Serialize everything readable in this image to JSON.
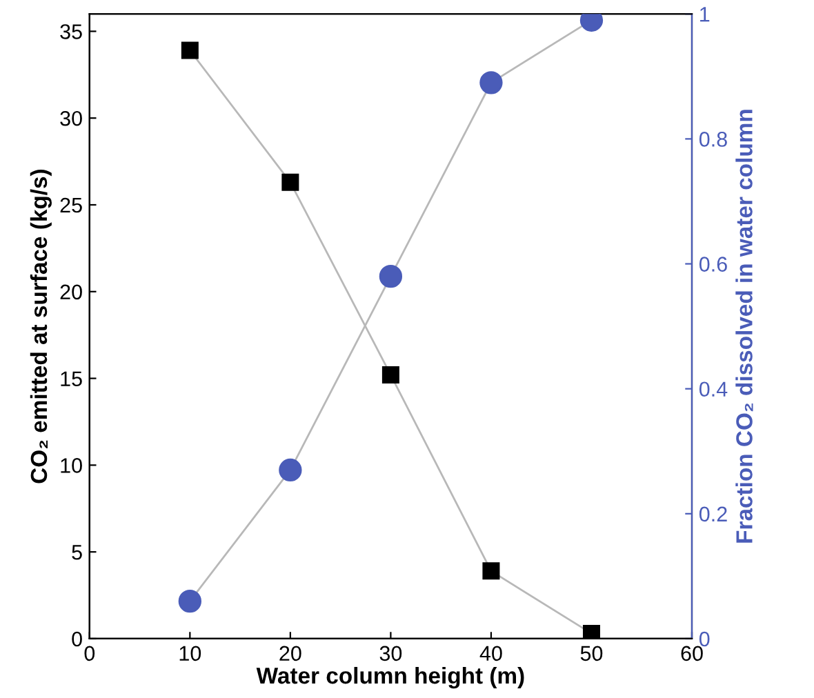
{
  "chart_data": {
    "type": "line",
    "xlabel": "Water column height (m)",
    "ylabel": "CO₂ emitted at surface (kg/s)",
    "y2label": "Fraction CO₂ dissolved in water column",
    "x": [
      10,
      20,
      30,
      40,
      50
    ],
    "series": [
      {
        "color": "#000000",
        "marker": "square",
        "values": [
          33.9,
          26.3,
          15.2,
          3.9,
          0.3
        ]
      },
      {
        "color": "#4a5cb8",
        "marker": "circle",
        "axis": "y2",
        "values": [
          0.06,
          0.27,
          0.58,
          0.89,
          0.99
        ]
      }
    ],
    "xlim": [
      0,
      60
    ],
    "xticks": [
      0,
      10,
      20,
      30,
      40,
      50,
      60
    ],
    "ylim": [
      0,
      36
    ],
    "yticks": [
      0,
      5,
      10,
      15,
      20,
      25,
      30,
      35
    ],
    "y2lim": [
      0,
      1
    ],
    "y2ticks": [
      0,
      0.2,
      0.4,
      0.6,
      0.8,
      1
    ],
    "grid": false,
    "legend": false
  }
}
